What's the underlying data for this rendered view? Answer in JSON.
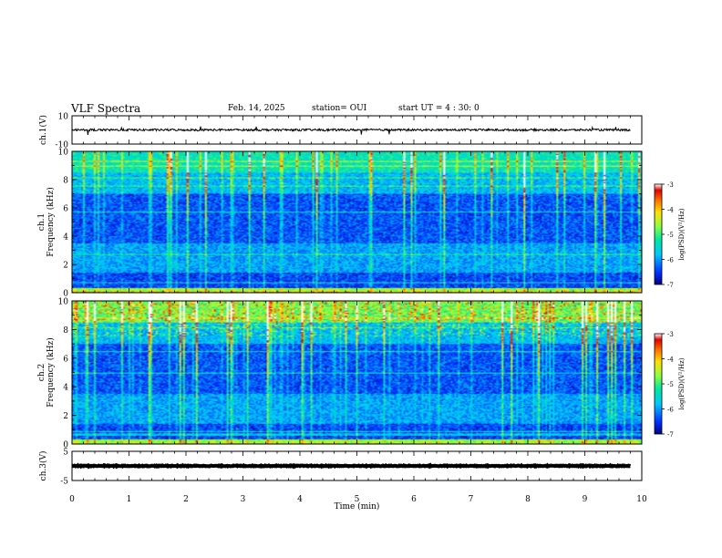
{
  "header": {
    "title": "VLF Spectra",
    "date": "Feb. 14, 2025",
    "station": "station= OUI",
    "start": "start  UT =   4 : 30: 0"
  },
  "colors": {
    "colormap": [
      "#000080",
      "#0030ff",
      "#00c8ff",
      "#00e8a0",
      "#8cff40",
      "#ffe000",
      "#ff7000",
      "#e00000",
      "#ffffff"
    ],
    "trace": "#000000"
  },
  "chart_data": [
    {
      "type": "line",
      "name": "ch1-waveform",
      "ylabel": "ch.1(V)",
      "ylim": [
        -10,
        10
      ],
      "yticks": [
        "10",
        "-10"
      ],
      "xlim": [
        0,
        10
      ],
      "baseline": 0,
      "noise_amplitude": 1.5
    },
    {
      "type": "heatmap",
      "name": "ch1-spectrogram",
      "ylabel": "ch.1",
      "ylabel2": "Frequency (kHz)",
      "ylim": [
        0,
        10
      ],
      "yticks": [
        "0",
        "2",
        "4",
        "6",
        "8",
        "10"
      ],
      "xlim": [
        0,
        10
      ],
      "colorbar": {
        "label": "log(PSD)(V²/Hz)",
        "range": [
          -7,
          -3
        ],
        "ticks": [
          "-3",
          "-4",
          "-5",
          "-6",
          "-7"
        ]
      }
    },
    {
      "type": "heatmap",
      "name": "ch2-spectrogram",
      "ylabel": "ch.2",
      "ylabel2": "Frequency (kHz)",
      "ylim": [
        0,
        10
      ],
      "yticks": [
        "0",
        "2",
        "4",
        "6",
        "8",
        "10"
      ],
      "xlim": [
        0,
        10
      ],
      "colorbar": {
        "label": "log(PSD)(V²/Hz)",
        "range": [
          -7,
          -3
        ],
        "ticks": [
          "-3",
          "-4",
          "-5",
          "-6",
          "-7"
        ]
      }
    },
    {
      "type": "line",
      "name": "ch3-waveform",
      "ylabel": "ch.3(V)",
      "ylim": [
        -5,
        5
      ],
      "yticks": [
        "5",
        "-5"
      ],
      "xlim": [
        0,
        10
      ],
      "baseline": 0,
      "noise_amplitude": 0.3,
      "xlabel": "Time (min)",
      "xticks": [
        "0",
        "1",
        "2",
        "3",
        "4",
        "5",
        "6",
        "7",
        "8",
        "9",
        "10"
      ]
    }
  ]
}
